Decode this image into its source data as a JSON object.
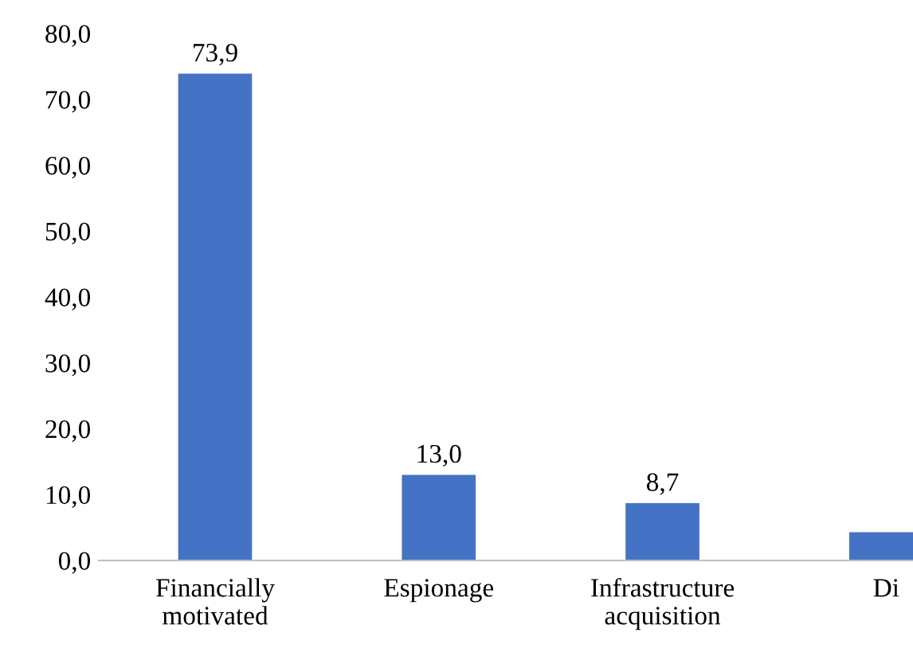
{
  "chart_data": {
    "type": "bar",
    "categories": [
      "Financially\nmotivated",
      "Espionage",
      "Infrastructure\nacquisition",
      "Di"
    ],
    "values": [
      73.9,
      13.0,
      8.7,
      4.3
    ],
    "value_labels": [
      "73,9",
      "13,0",
      "8,7",
      null
    ],
    "color": "#4472c4",
    "ylim": [
      0,
      80
    ],
    "yticks": [
      {
        "value": 0,
        "label": "0,0"
      },
      {
        "value": 10,
        "label": "10,0"
      },
      {
        "value": 20,
        "label": "20,0"
      },
      {
        "value": 30,
        "label": "30,0"
      },
      {
        "value": 40,
        "label": "40,0"
      },
      {
        "value": 50,
        "label": "50,0"
      },
      {
        "value": 60,
        "label": "60,0"
      },
      {
        "value": 70,
        "label": "70,0"
      },
      {
        "value": 80,
        "label": "80,0"
      }
    ],
    "grid": false,
    "legend": false
  }
}
